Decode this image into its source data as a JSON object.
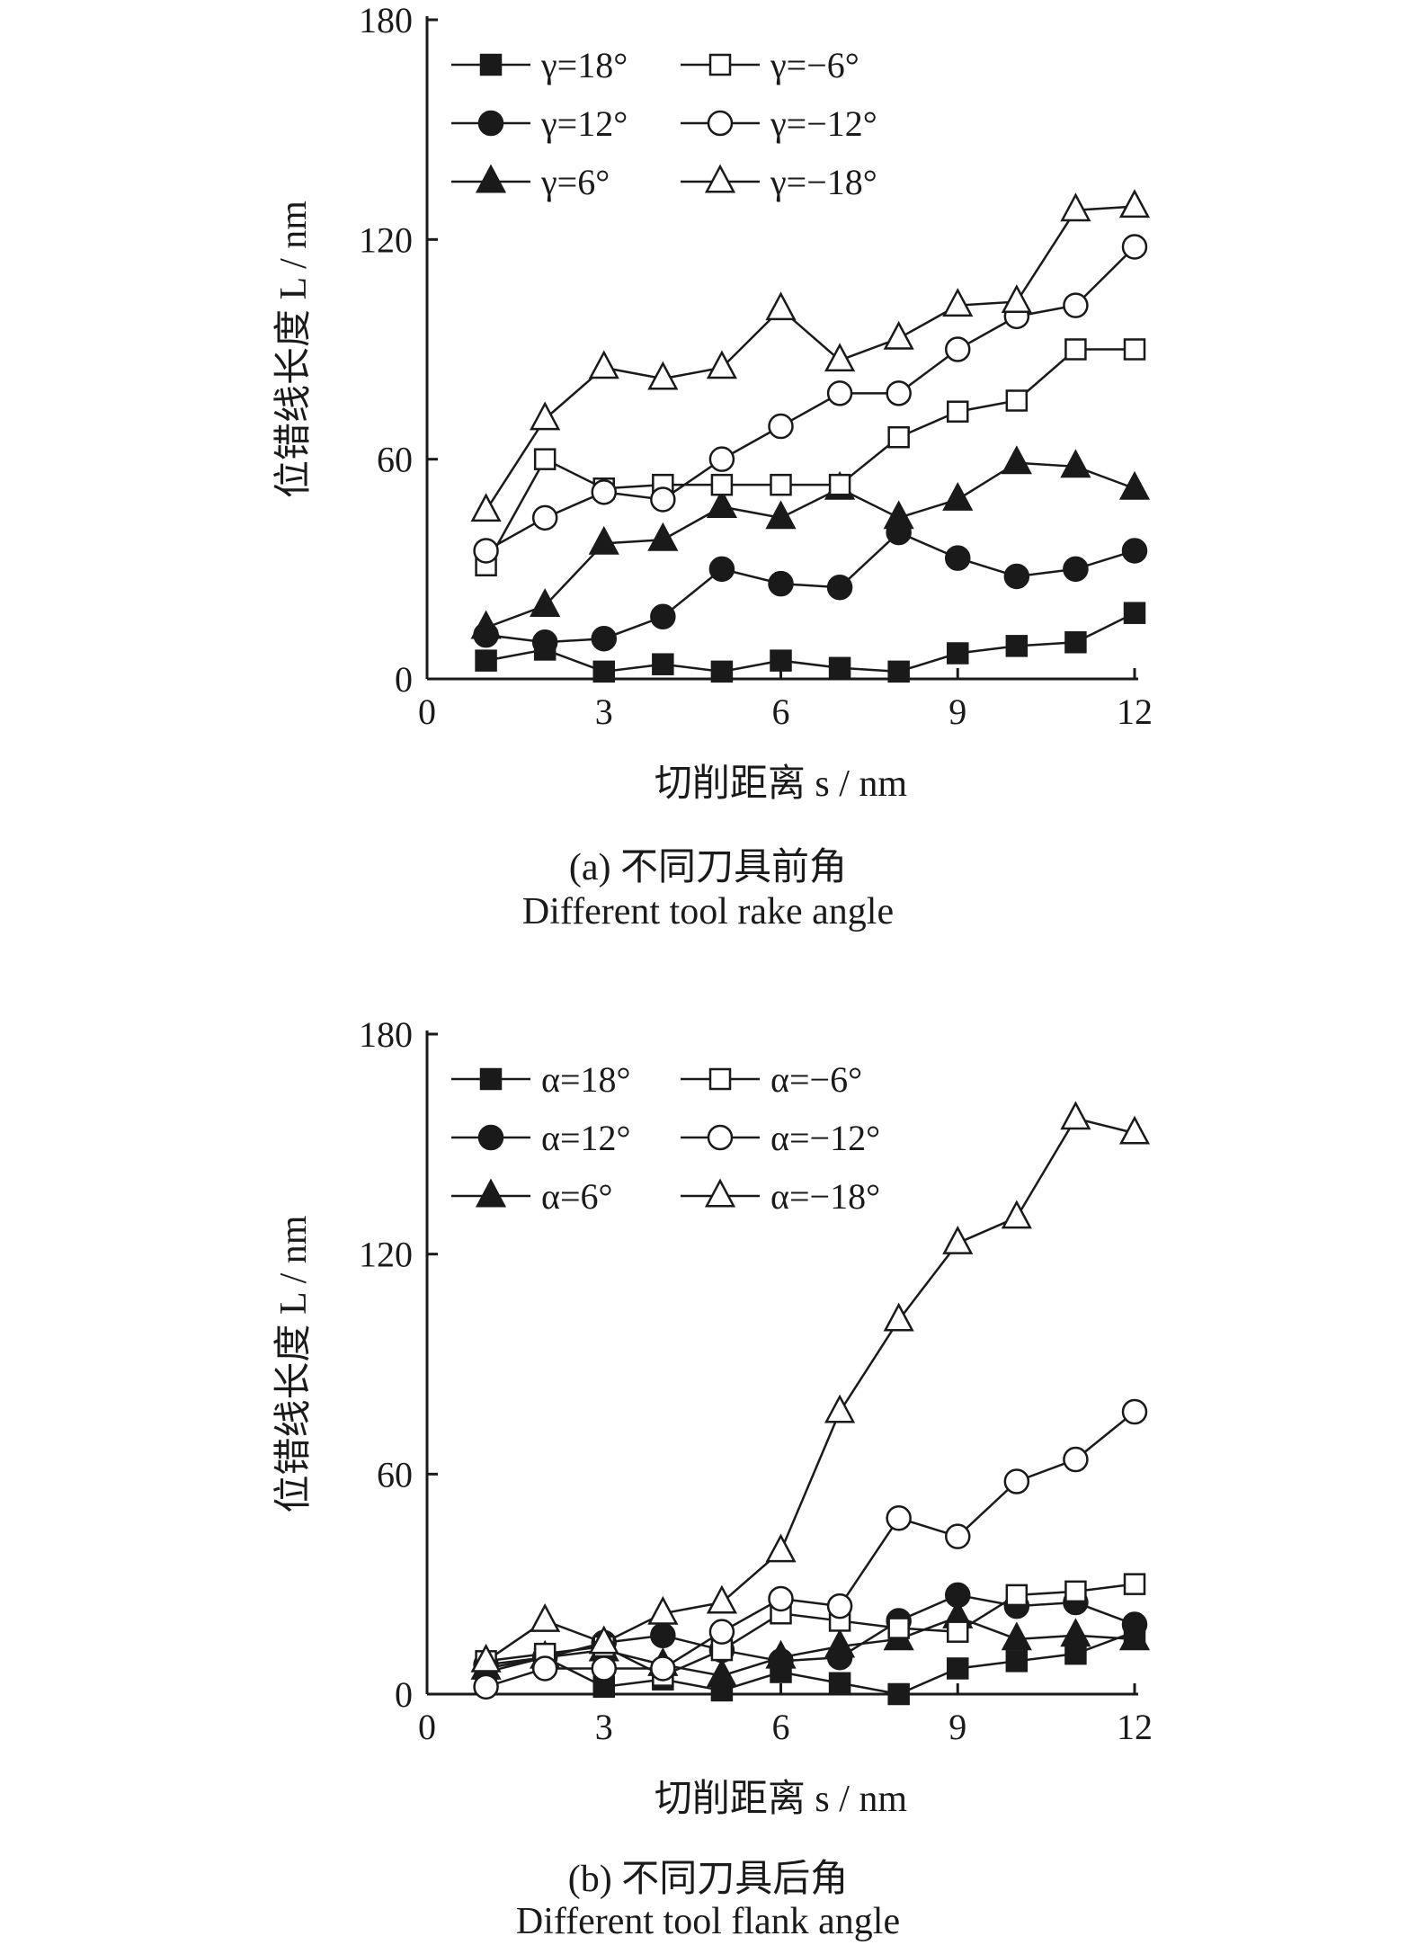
{
  "chart_data": [
    {
      "type": "line",
      "panel_label": "(a)",
      "caption_cn": "不同刀具前角",
      "caption_en": "Different tool rake angle",
      "xlabel": "切削距离 s / nm",
      "ylabel": "位错线长度 L / nm",
      "xlim": [
        0,
        12
      ],
      "ylim": [
        0,
        180
      ],
      "xticks": [
        "0",
        "3",
        "6",
        "9",
        "12"
      ],
      "yticks": [
        "0",
        "60",
        "120",
        "180"
      ],
      "x": [
        1,
        2,
        3,
        4,
        5,
        6,
        7,
        8,
        9,
        10,
        11,
        12
      ],
      "legend": "top-left",
      "series": [
        {
          "name": "γ=18°",
          "marker": "square",
          "filled": true,
          "values": [
            5,
            8,
            2,
            4,
            2,
            5,
            3,
            2,
            7,
            9,
            10,
            18
          ]
        },
        {
          "name": "γ=12°",
          "marker": "circle",
          "filled": true,
          "values": [
            12,
            10,
            11,
            17,
            30,
            26,
            25,
            40,
            33,
            28,
            30,
            35
          ]
        },
        {
          "name": "γ=6°",
          "marker": "triangle",
          "filled": true,
          "values": [
            14,
            20,
            37,
            38,
            47,
            44,
            52,
            44,
            49,
            59,
            58,
            52
          ]
        },
        {
          "name": "γ=−6°",
          "marker": "square",
          "filled": false,
          "values": [
            31,
            60,
            52,
            53,
            53,
            53,
            53,
            66,
            73,
            76,
            90,
            90
          ]
        },
        {
          "name": "γ=−12°",
          "marker": "circle",
          "filled": false,
          "values": [
            35,
            44,
            51,
            49,
            60,
            69,
            78,
            78,
            90,
            99,
            102,
            118
          ]
        },
        {
          "name": "γ=−18°",
          "marker": "triangle",
          "filled": false,
          "values": [
            46,
            71,
            85,
            82,
            85,
            101,
            87,
            93,
            102,
            103,
            128,
            129
          ]
        }
      ]
    },
    {
      "type": "line",
      "panel_label": "(b)",
      "caption_cn": "不同刀具后角",
      "caption_en": "Different tool flank angle",
      "xlabel": "切削距离 s / nm",
      "ylabel": "位错线长度 L / nm",
      "xlim": [
        0,
        12
      ],
      "ylim": [
        0,
        180
      ],
      "xticks": [
        "0",
        "3",
        "6",
        "9",
        "12"
      ],
      "yticks": [
        "0",
        "60",
        "120",
        "180"
      ],
      "x": [
        1,
        2,
        3,
        4,
        5,
        6,
        7,
        8,
        9,
        10,
        11,
        12
      ],
      "legend": "top-left",
      "series": [
        {
          "name": "α=18°",
          "marker": "square",
          "filled": true,
          "values": [
            6,
            10,
            2,
            4,
            1,
            6,
            3,
            0,
            7,
            9,
            11,
            17
          ]
        },
        {
          "name": "α=12°",
          "marker": "circle",
          "filled": true,
          "values": [
            8,
            10,
            14,
            16,
            12,
            9,
            10,
            20,
            27,
            24,
            25,
            19
          ]
        },
        {
          "name": "α=6°",
          "marker": "triangle",
          "filled": true,
          "values": [
            7,
            10,
            12,
            8,
            5,
            10,
            13,
            15,
            21,
            15,
            16,
            15
          ]
        },
        {
          "name": "α=−6°",
          "marker": "square",
          "filled": false,
          "values": [
            9,
            11,
            13,
            5,
            12,
            22,
            20,
            18,
            17,
            27,
            28,
            30
          ]
        },
        {
          "name": "α=−12°",
          "marker": "circle",
          "filled": false,
          "values": [
            2,
            7,
            7,
            7,
            17,
            26,
            24,
            48,
            43,
            58,
            64,
            77
          ]
        },
        {
          "name": "α=−18°",
          "marker": "triangle",
          "filled": false,
          "values": [
            9,
            20,
            14,
            22,
            25,
            39,
            77,
            102,
            123,
            130,
            157,
            153
          ]
        }
      ]
    }
  ]
}
